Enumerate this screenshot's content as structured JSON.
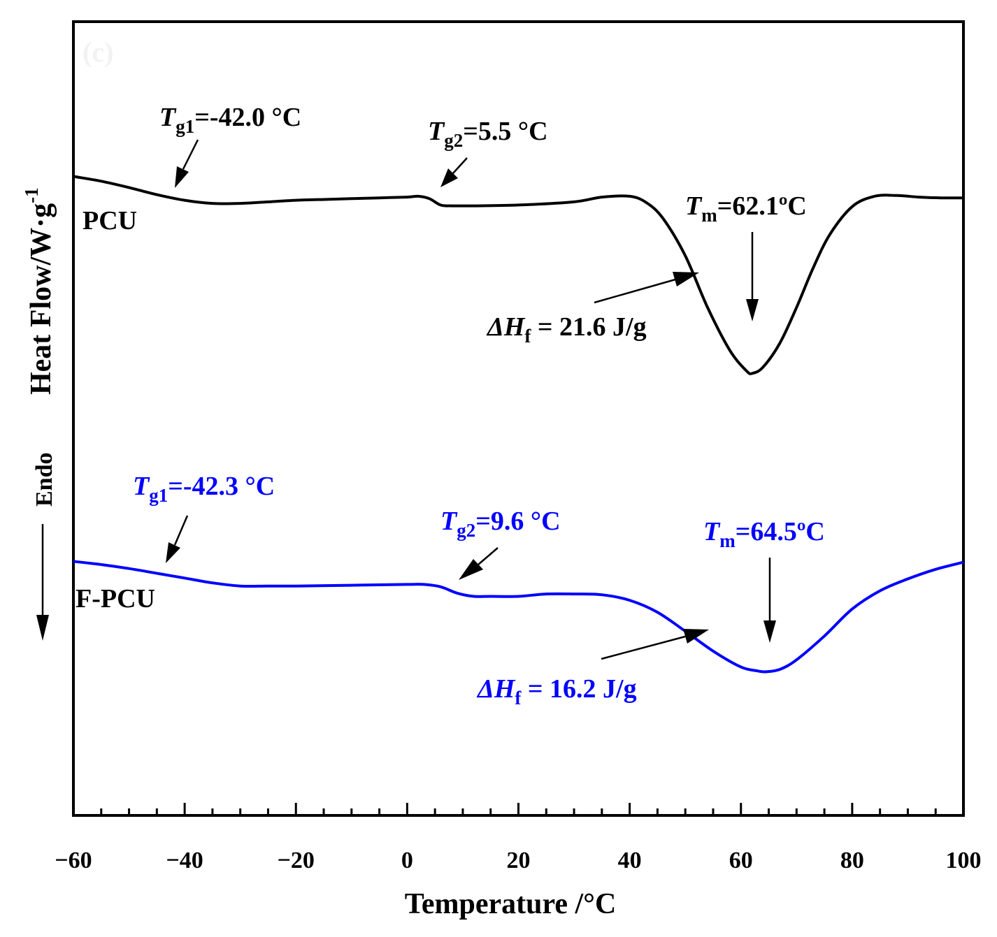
{
  "chart_data": {
    "type": "line",
    "xlabel": "Temperature /°C",
    "ylabel": "Heat Flow/W·g",
    "ylabel_sup": "-1",
    "panel_label": "(c)",
    "direction_label": "Endo",
    "xlim": [
      -60,
      100
    ],
    "xticks": [
      -60,
      -40,
      -20,
      0,
      20,
      40,
      60,
      80,
      100
    ],
    "xtick_labels": [
      "−60",
      "−40",
      "−20",
      "0",
      "20",
      "40",
      "60",
      "80",
      "100"
    ],
    "ylim": [
      0,
      100
    ],
    "grid": false,
    "legend": "none",
    "series": [
      {
        "name": "PCU",
        "color": "#000000",
        "x": [
          -60,
          -55,
          -50,
          -45,
          -40,
          -35,
          -30,
          -25,
          -20,
          -15,
          -10,
          -5,
          0,
          2,
          4,
          6,
          8,
          12,
          20,
          30,
          35,
          40,
          43,
          46,
          50,
          54,
          58,
          61,
          62.1,
          64,
          67,
          70,
          73,
          76,
          80,
          84,
          88,
          92,
          96,
          100
        ],
        "y": [
          80.5,
          79.9,
          79.1,
          78.2,
          77.5,
          77.1,
          77.1,
          77.3,
          77.5,
          77.6,
          77.7,
          77.8,
          77.9,
          78.0,
          77.7,
          76.9,
          76.8,
          76.8,
          76.9,
          77.3,
          77.9,
          78.0,
          77.2,
          75.2,
          70.5,
          64.0,
          58.6,
          56.0,
          55.7,
          56.5,
          59.5,
          64.0,
          69.0,
          73.2,
          76.7,
          78.0,
          78.1,
          77.9,
          77.8,
          77.8
        ]
      },
      {
        "name": "F-PCU",
        "color": "#0000ff",
        "x": [
          -60,
          -55,
          -50,
          -45,
          -40,
          -35,
          -30,
          -25,
          -20,
          -10,
          0,
          3,
          6,
          9,
          12,
          15,
          20,
          25,
          30,
          35,
          40,
          45,
          50,
          55,
          60,
          63,
          64.5,
          67,
          70,
          75,
          80,
          85,
          90,
          95,
          100
        ],
        "y": [
          32.0,
          31.6,
          31.1,
          30.5,
          29.9,
          29.3,
          28.9,
          28.9,
          28.9,
          29.0,
          29.1,
          29.1,
          28.8,
          28.0,
          27.6,
          27.6,
          27.6,
          27.9,
          27.9,
          27.8,
          27.1,
          25.6,
          23.2,
          20.7,
          18.7,
          18.2,
          18.1,
          18.4,
          19.6,
          22.6,
          26.0,
          28.3,
          29.8,
          31.0,
          31.9
        ]
      }
    ],
    "curve_labels": [
      "PCU",
      "F-PCU"
    ],
    "annotations": [
      {
        "series": "PCU",
        "sym": "T",
        "sub": "g1",
        "text": "=-42.0 °C"
      },
      {
        "series": "PCU",
        "sym": "T",
        "sub": "g2",
        "text": "=5.5 °C"
      },
      {
        "series": "PCU",
        "sym": "T",
        "sub": "m",
        "text": "=62.1ºC"
      },
      {
        "series": "PCU",
        "sym": "ΔH",
        "sub": "f",
        "text": " = 21.6 J/g"
      },
      {
        "series": "F-PCU",
        "sym": "T",
        "sub": "g1",
        "text": "=-42.3 °C"
      },
      {
        "series": "F-PCU",
        "sym": "T",
        "sub": "g2",
        "text": "=9.6 °C"
      },
      {
        "series": "F-PCU",
        "sym": "T",
        "sub": "m",
        "text": "=64.5ºC"
      },
      {
        "series": "F-PCU",
        "sym": "ΔH",
        "sub": "f",
        "text": " = 16.2 J/g"
      }
    ]
  }
}
